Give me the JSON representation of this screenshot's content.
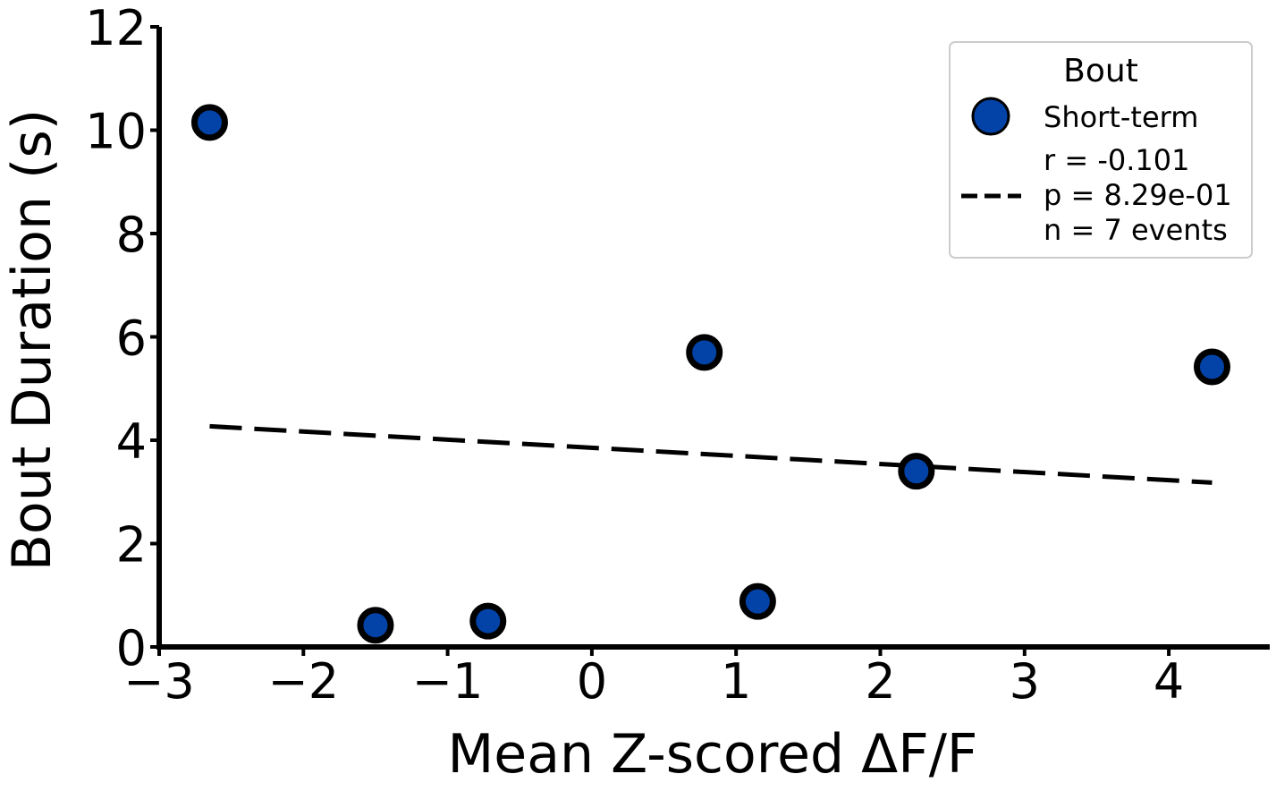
{
  "chart_data": {
    "type": "scatter",
    "title": "",
    "xlabel": "Mean Z-scored ΔF/F",
    "ylabel": "Bout Duration (s)",
    "xlim": [
      -3,
      4.7
    ],
    "ylim": [
      0,
      12
    ],
    "xticks": [
      -3,
      -2,
      -1,
      0,
      1,
      2,
      3,
      4
    ],
    "xtick_labels": [
      "−3",
      "−2",
      "−1",
      "0",
      "1",
      "2",
      "3",
      "4"
    ],
    "yticks": [
      0,
      2,
      4,
      6,
      8,
      10,
      12
    ],
    "ytick_labels": [
      "0",
      "2",
      "4",
      "6",
      "8",
      "10",
      "12"
    ],
    "grid": false,
    "series": [
      {
        "name": "Short-term",
        "color": "#0343a8",
        "edge_color": "#000000",
        "points": [
          {
            "x": -2.65,
            "y": 10.15
          },
          {
            "x": -1.5,
            "y": 0.42
          },
          {
            "x": -0.72,
            "y": 0.5
          },
          {
            "x": 0.78,
            "y": 5.7
          },
          {
            "x": 1.15,
            "y": 0.88
          },
          {
            "x": 2.25,
            "y": 3.4
          },
          {
            "x": 4.3,
            "y": 5.42
          }
        ]
      }
    ],
    "fit_line": {
      "style": "dashed",
      "color": "#000000",
      "x": [
        -2.65,
        4.3
      ],
      "y": [
        4.27,
        3.18
      ]
    },
    "legend": {
      "placement": "top-right",
      "title": "Bout",
      "entries": [
        {
          "label": "Short-term",
          "marker": "circle"
        },
        {
          "label": "r = -0.101\np = 8.29e-01\nn = 7 events",
          "marker": "dashed-line"
        }
      ]
    }
  }
}
